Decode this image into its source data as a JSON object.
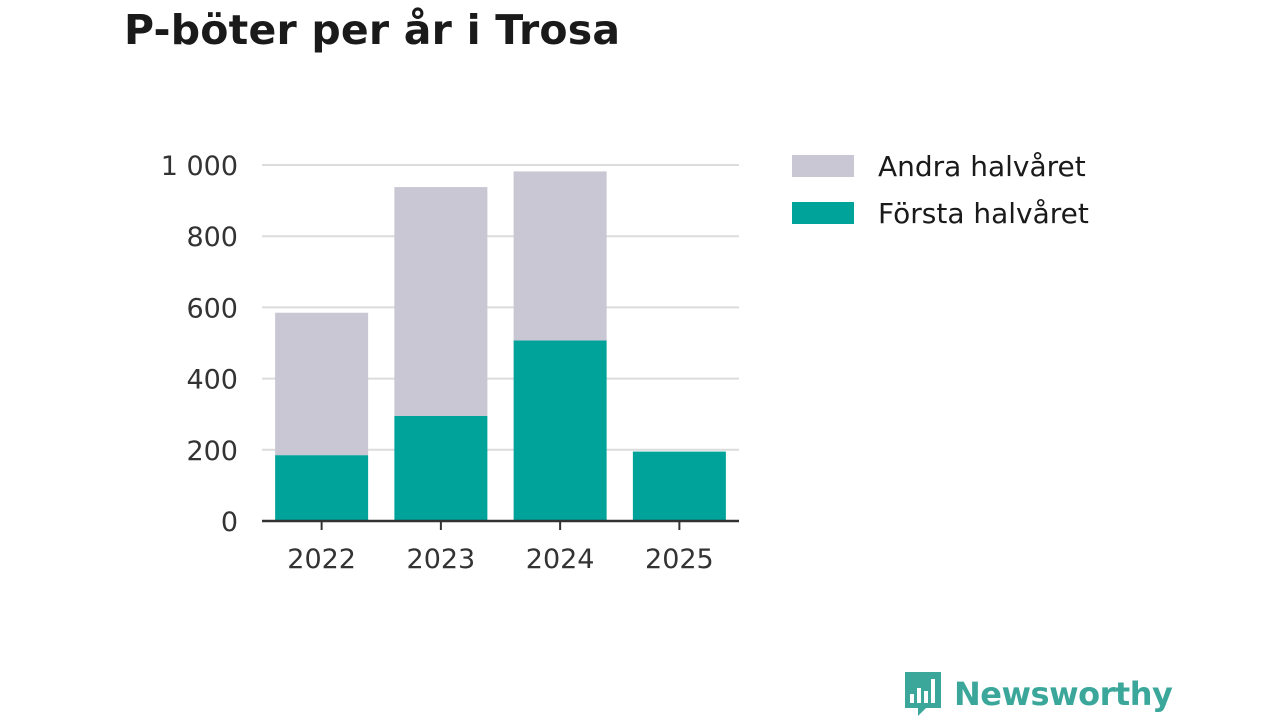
{
  "chart_data": {
    "type": "bar",
    "stacked": true,
    "title": "P-böter per år i Trosa",
    "categories": [
      "2022",
      "2023",
      "2024",
      "2025"
    ],
    "series": [
      {
        "name": "Första halvåret",
        "values": [
          185,
          295,
          507,
          195
        ],
        "color": "#00a39a"
      },
      {
        "name": "Andra halvåret",
        "values": [
          400,
          643,
          475,
          0
        ],
        "color": "#c8c7d3"
      }
    ],
    "legend_order": [
      "Andra halvåret",
      "Första halvåret"
    ],
    "ylim": [
      0,
      1000
    ],
    "yticks": [
      0,
      200,
      400,
      600,
      800,
      1000
    ],
    "ytick_labels": [
      "0",
      "200",
      "400",
      "600",
      "800",
      "1 000"
    ],
    "grid": true,
    "legend_position": "right"
  },
  "brand": {
    "name": "Newsworthy",
    "icon": "newsworthy-chart-icon",
    "color": "#3aa79a"
  }
}
